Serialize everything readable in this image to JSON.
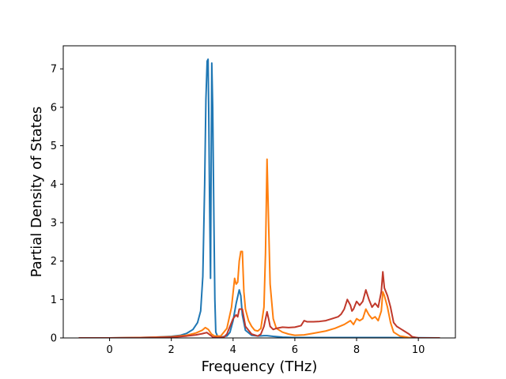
{
  "chart_data": {
    "type": "line",
    "title": "",
    "xlabel": "Frequency (THz)",
    "ylabel": "Partial Density of States",
    "xlim": [
      -1.5,
      11.2
    ],
    "ylim": [
      0,
      7.6
    ],
    "x_ticks": [
      0,
      2,
      4,
      6,
      8,
      10
    ],
    "y_ticks": [
      0,
      1,
      2,
      3,
      4,
      5,
      6,
      7
    ],
    "grid": false,
    "legend": "none",
    "series": [
      {
        "color": "#1f77b4",
        "points": [
          [
            -1.0,
            0
          ],
          [
            0,
            0
          ],
          [
            0.5,
            0.005
          ],
          [
            1.0,
            0.01
          ],
          [
            1.5,
            0.02
          ],
          [
            2.0,
            0.04
          ],
          [
            2.3,
            0.07
          ],
          [
            2.5,
            0.12
          ],
          [
            2.7,
            0.22
          ],
          [
            2.85,
            0.4
          ],
          [
            2.95,
            0.7
          ],
          [
            3.02,
            1.6
          ],
          [
            3.08,
            4.0
          ],
          [
            3.12,
            6.2
          ],
          [
            3.16,
            7.2
          ],
          [
            3.19,
            7.25
          ],
          [
            3.21,
            6.0
          ],
          [
            3.24,
            3.5
          ],
          [
            3.27,
            1.55
          ],
          [
            3.28,
            3.0
          ],
          [
            3.31,
            7.15
          ],
          [
            3.34,
            6.0
          ],
          [
            3.38,
            3.0
          ],
          [
            3.41,
            1.0
          ],
          [
            3.44,
            0.15
          ],
          [
            3.5,
            0.04
          ],
          [
            3.6,
            0.02
          ],
          [
            3.8,
            0.05
          ],
          [
            3.9,
            0.15
          ],
          [
            4.0,
            0.45
          ],
          [
            4.1,
            0.9
          ],
          [
            4.2,
            1.25
          ],
          [
            4.25,
            1.1
          ],
          [
            4.3,
            0.6
          ],
          [
            4.4,
            0.2
          ],
          [
            4.6,
            0.07
          ],
          [
            4.8,
            0.05
          ],
          [
            5.0,
            0.06
          ],
          [
            5.1,
            0.06
          ],
          [
            5.3,
            0.04
          ],
          [
            5.6,
            0.02
          ],
          [
            6.0,
            0.01
          ],
          [
            7.0,
            0.01
          ],
          [
            8.0,
            0.01
          ],
          [
            9.0,
            0.01
          ],
          [
            10.0,
            0.005
          ],
          [
            10.7,
            0
          ]
        ]
      },
      {
        "color": "#ff7f0e",
        "points": [
          [
            -1.0,
            0
          ],
          [
            0,
            0
          ],
          [
            0.5,
            0.005
          ],
          [
            1.0,
            0.01
          ],
          [
            1.5,
            0.02
          ],
          [
            2.0,
            0.03
          ],
          [
            2.5,
            0.07
          ],
          [
            2.8,
            0.13
          ],
          [
            3.0,
            0.2
          ],
          [
            3.1,
            0.27
          ],
          [
            3.2,
            0.22
          ],
          [
            3.3,
            0.1
          ],
          [
            3.4,
            0.05
          ],
          [
            3.6,
            0.05
          ],
          [
            3.8,
            0.25
          ],
          [
            3.95,
            0.8
          ],
          [
            4.05,
            1.55
          ],
          [
            4.1,
            1.4
          ],
          [
            4.15,
            1.45
          ],
          [
            4.2,
            2.0
          ],
          [
            4.25,
            2.25
          ],
          [
            4.3,
            2.25
          ],
          [
            4.35,
            1.2
          ],
          [
            4.4,
            0.75
          ],
          [
            4.5,
            0.45
          ],
          [
            4.6,
            0.3
          ],
          [
            4.7,
            0.2
          ],
          [
            4.8,
            0.18
          ],
          [
            4.9,
            0.25
          ],
          [
            5.0,
            0.8
          ],
          [
            5.05,
            2.2
          ],
          [
            5.1,
            4.65
          ],
          [
            5.15,
            3.0
          ],
          [
            5.2,
            1.4
          ],
          [
            5.3,
            0.5
          ],
          [
            5.4,
            0.25
          ],
          [
            5.6,
            0.15
          ],
          [
            5.8,
            0.1
          ],
          [
            6.0,
            0.07
          ],
          [
            6.3,
            0.08
          ],
          [
            6.6,
            0.12
          ],
          [
            7.0,
            0.18
          ],
          [
            7.3,
            0.25
          ],
          [
            7.6,
            0.35
          ],
          [
            7.8,
            0.45
          ],
          [
            7.9,
            0.35
          ],
          [
            8.0,
            0.5
          ],
          [
            8.1,
            0.45
          ],
          [
            8.2,
            0.5
          ],
          [
            8.3,
            0.75
          ],
          [
            8.4,
            0.6
          ],
          [
            8.5,
            0.5
          ],
          [
            8.6,
            0.55
          ],
          [
            8.7,
            0.45
          ],
          [
            8.8,
            0.7
          ],
          [
            8.85,
            1.2
          ],
          [
            8.9,
            1.1
          ],
          [
            9.0,
            0.8
          ],
          [
            9.1,
            0.4
          ],
          [
            9.2,
            0.15
          ],
          [
            9.4,
            0.05
          ],
          [
            9.7,
            0.01
          ],
          [
            10.0,
            0
          ],
          [
            10.7,
            0
          ]
        ]
      },
      {
        "color": "#c0392b",
        "points": [
          [
            -1.0,
            0
          ],
          [
            0,
            0
          ],
          [
            1.0,
            0.005
          ],
          [
            2.0,
            0.02
          ],
          [
            2.5,
            0.05
          ],
          [
            2.8,
            0.08
          ],
          [
            3.0,
            0.11
          ],
          [
            3.15,
            0.14
          ],
          [
            3.25,
            0.08
          ],
          [
            3.35,
            0.02
          ],
          [
            3.5,
            0.01
          ],
          [
            3.7,
            0.02
          ],
          [
            3.8,
            0.1
          ],
          [
            3.9,
            0.3
          ],
          [
            4.0,
            0.5
          ],
          [
            4.1,
            0.6
          ],
          [
            4.15,
            0.55
          ],
          [
            4.2,
            0.75
          ],
          [
            4.3,
            0.75
          ],
          [
            4.4,
            0.3
          ],
          [
            4.6,
            0.1
          ],
          [
            4.8,
            0.05
          ],
          [
            4.9,
            0.1
          ],
          [
            5.0,
            0.3
          ],
          [
            5.1,
            0.68
          ],
          [
            5.15,
            0.5
          ],
          [
            5.2,
            0.3
          ],
          [
            5.3,
            0.22
          ],
          [
            5.4,
            0.25
          ],
          [
            5.6,
            0.28
          ],
          [
            5.8,
            0.27
          ],
          [
            6.0,
            0.28
          ],
          [
            6.2,
            0.32
          ],
          [
            6.3,
            0.45
          ],
          [
            6.4,
            0.42
          ],
          [
            6.6,
            0.42
          ],
          [
            6.8,
            0.43
          ],
          [
            7.0,
            0.45
          ],
          [
            7.2,
            0.5
          ],
          [
            7.4,
            0.55
          ],
          [
            7.5,
            0.62
          ],
          [
            7.6,
            0.75
          ],
          [
            7.7,
            1.0
          ],
          [
            7.8,
            0.85
          ],
          [
            7.85,
            0.7
          ],
          [
            7.9,
            0.75
          ],
          [
            8.0,
            0.95
          ],
          [
            8.1,
            0.85
          ],
          [
            8.2,
            0.95
          ],
          [
            8.3,
            1.25
          ],
          [
            8.4,
            1.0
          ],
          [
            8.5,
            0.8
          ],
          [
            8.6,
            0.9
          ],
          [
            8.7,
            0.8
          ],
          [
            8.8,
            1.2
          ],
          [
            8.85,
            1.72
          ],
          [
            8.9,
            1.3
          ],
          [
            9.0,
            1.1
          ],
          [
            9.1,
            0.8
          ],
          [
            9.2,
            0.4
          ],
          [
            9.3,
            0.3
          ],
          [
            9.5,
            0.2
          ],
          [
            9.7,
            0.1
          ],
          [
            9.8,
            0.03
          ],
          [
            10.0,
            0
          ],
          [
            10.7,
            0
          ]
        ]
      }
    ]
  }
}
